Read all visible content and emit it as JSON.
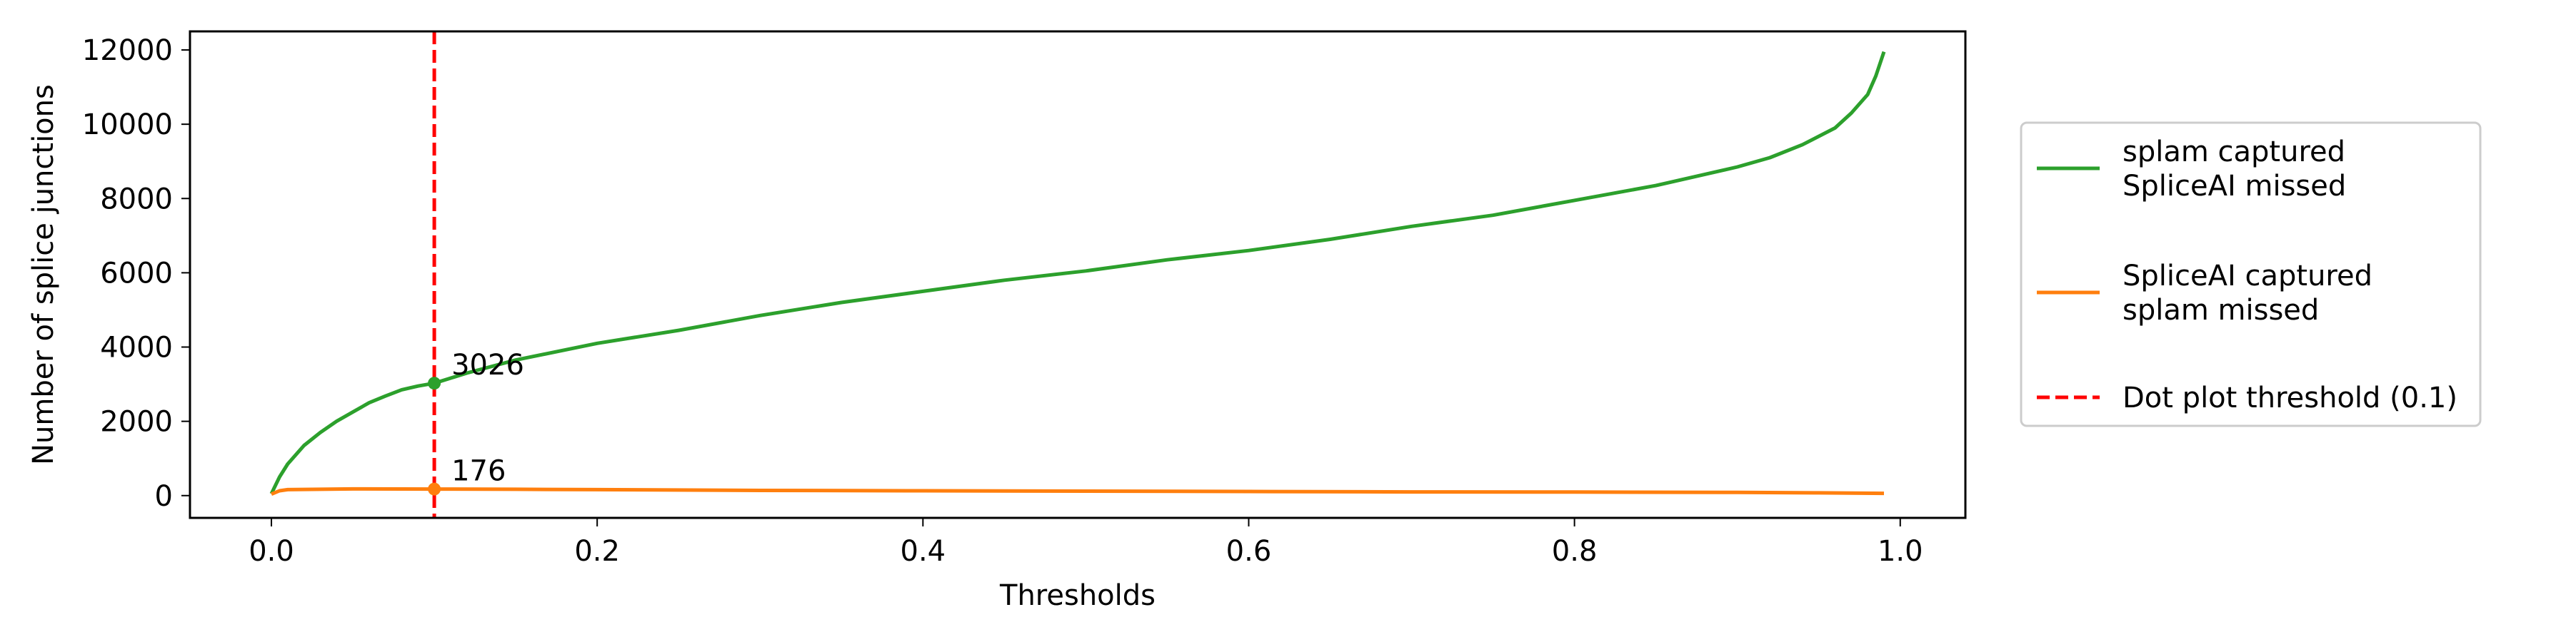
{
  "chart_data": {
    "type": "line",
    "xlabel": "Thresholds",
    "ylabel": "Number of splice junctions",
    "xlim": [
      -0.05,
      1.04
    ],
    "ylim": [
      -600,
      12500
    ],
    "x_ticks": [
      0.0,
      0.2,
      0.4,
      0.6,
      0.8,
      1.0
    ],
    "x_tick_labels": [
      "0.0",
      "0.2",
      "0.4",
      "0.6",
      "0.8",
      "1.0"
    ],
    "y_ticks": [
      0,
      2000,
      4000,
      6000,
      8000,
      10000,
      12000
    ],
    "y_tick_labels": [
      "0",
      "2000",
      "4000",
      "6000",
      "8000",
      "10000",
      "12000"
    ],
    "grid": false,
    "legend_position": "outside-right",
    "series": [
      {
        "name": "splam captured\nSpliceAI missed",
        "color": "#2ca02c",
        "style": "solid",
        "x": [
          0.0,
          0.005,
          0.01,
          0.02,
          0.03,
          0.04,
          0.05,
          0.06,
          0.07,
          0.08,
          0.09,
          0.1,
          0.12,
          0.15,
          0.2,
          0.25,
          0.3,
          0.35,
          0.4,
          0.45,
          0.5,
          0.55,
          0.6,
          0.65,
          0.7,
          0.75,
          0.8,
          0.85,
          0.9,
          0.92,
          0.94,
          0.96,
          0.97,
          0.98,
          0.985,
          0.99
        ],
        "y": [
          50,
          500,
          850,
          1350,
          1700,
          2000,
          2250,
          2500,
          2680,
          2850,
          2950,
          3026,
          3300,
          3650,
          4100,
          4450,
          4850,
          5200,
          5500,
          5800,
          6050,
          6350,
          6600,
          6900,
          7250,
          7550,
          7950,
          8350,
          8850,
          9100,
          9450,
          9900,
          10300,
          10800,
          11300,
          11950
        ]
      },
      {
        "name": "SpliceAI captured\nsplam missed",
        "color": "#ff7f0e",
        "style": "solid",
        "x": [
          0.0,
          0.005,
          0.01,
          0.03,
          0.05,
          0.08,
          0.1,
          0.15,
          0.2,
          0.3,
          0.4,
          0.5,
          0.6,
          0.7,
          0.8,
          0.9,
          0.95,
          0.99
        ],
        "y": [
          40,
          130,
          160,
          170,
          180,
          178,
          176,
          170,
          160,
          140,
          130,
          120,
          110,
          100,
          95,
          85,
          75,
          60
        ]
      },
      {
        "name": "Dot plot threshold (0.1)",
        "color": "#ff0000",
        "style": "dashed",
        "type": "vline",
        "x": 0.1
      }
    ],
    "points": [
      {
        "x": 0.1,
        "y": 3026,
        "color": "#2ca02c",
        "label": "3026"
      },
      {
        "x": 0.1,
        "y": 176,
        "color": "#ff7f0e",
        "label": "176"
      }
    ]
  }
}
